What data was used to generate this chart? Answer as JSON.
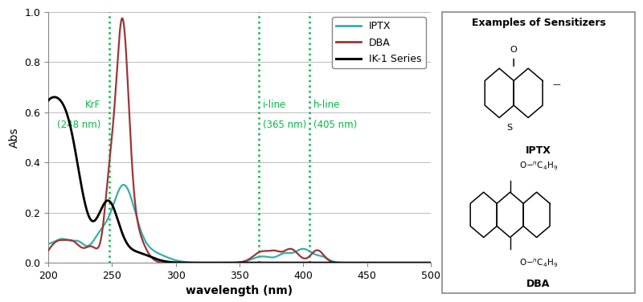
{
  "xlabel": "wavelength (nm)",
  "ylabel": "Abs",
  "xlim": [
    200,
    500
  ],
  "ylim": [
    0,
    1.0
  ],
  "yticks": [
    0,
    0.2,
    0.4,
    0.6,
    0.8,
    1
  ],
  "xticks": [
    200,
    250,
    300,
    350,
    400,
    450,
    500
  ],
  "vlines": [
    248,
    365,
    405
  ],
  "vline_color": "#00BB44",
  "colors": {
    "IPTX": "#3AACAC",
    "DBA": "#9B3535",
    "IK1": "#000000"
  },
  "legend_labels": [
    "IPTX",
    "DBA",
    "IK-1 Series"
  ],
  "right_panel_title": "Examples of Sensitizers"
}
